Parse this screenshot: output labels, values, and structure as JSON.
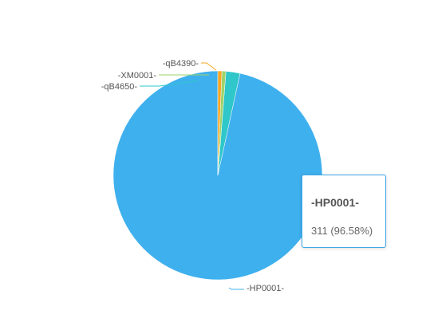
{
  "chart_data": {
    "type": "pie",
    "categories": [
      "-HP0001-",
      "-qB4650-",
      "-XM0001-",
      "-qB4390-"
    ],
    "values": [
      311,
      7,
      2,
      2
    ],
    "colors": [
      "#3fb0ee",
      "#2fc7c9",
      "#9ed36a",
      "#f5a623"
    ],
    "legend": "none"
  },
  "tooltip": {
    "title": "-HP0001-",
    "value": "311 (96.58%)",
    "border_color": "#3fa7e8"
  }
}
